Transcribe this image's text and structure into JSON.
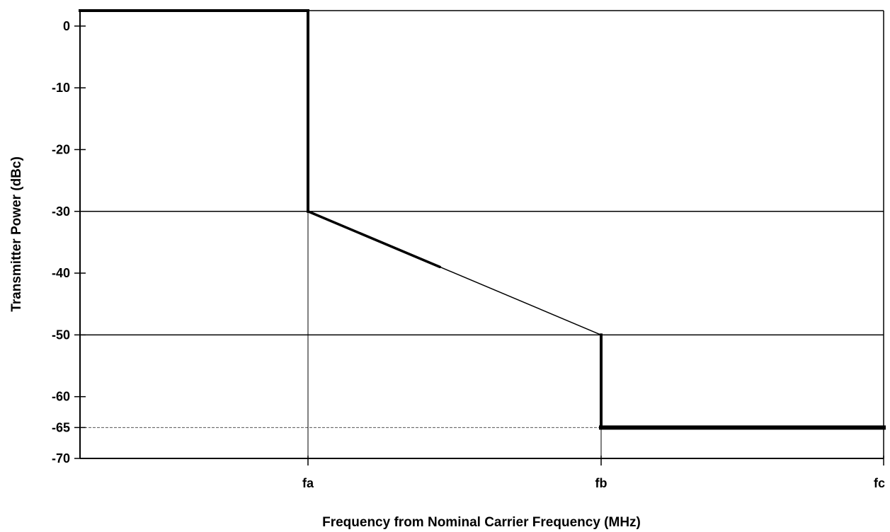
{
  "chart_data": {
    "type": "line",
    "title": "",
    "xlabel": "Frequency from Nominal Carrier Frequency (MHz)",
    "ylabel": "Transmitter Power (dBc)",
    "ylim": [
      -70,
      2.5
    ],
    "x_ticks": [
      "fa",
      "fb",
      "fc"
    ],
    "y_ticks": [
      0,
      -10,
      -20,
      -30,
      -40,
      -50,
      -60,
      -65,
      -70
    ],
    "gridlines_y": [
      -30,
      -50
    ],
    "dashed_reference_y": -65,
    "grid": true,
    "legend": "none",
    "series": [
      {
        "points": [
          {
            "x": "",
            "y": 2.5
          },
          {
            "x": "fa",
            "y": 2.5
          },
          {
            "x": "fa",
            "y": -30
          },
          {
            "x": "fb",
            "y": -50
          },
          {
            "x": "fb",
            "y": -65
          },
          {
            "x": "fc",
            "y": -65
          }
        ]
      }
    ]
  }
}
